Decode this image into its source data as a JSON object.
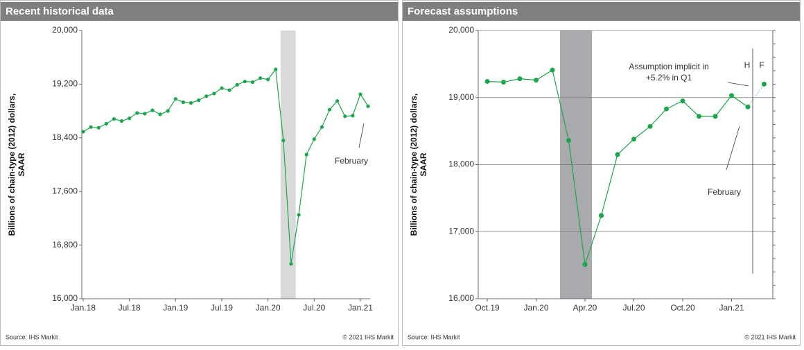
{
  "chart_data": [
    {
      "type": "line",
      "title": "Recent historical data",
      "ylabel": [
        "Billions of chain-type (2012) dollars,",
        "SAAR"
      ],
      "source": "Source: IHS Markit",
      "copyright": "© 2021 IHS Markit",
      "categories": [
        "Jan.18",
        null,
        null,
        null,
        null,
        null,
        "Jul.18",
        null,
        null,
        null,
        null,
        null,
        "Jan.19",
        null,
        null,
        null,
        null,
        null,
        "Jul.19",
        null,
        null,
        null,
        null,
        null,
        "Jan.20",
        null,
        null,
        null,
        null,
        null,
        "Jul.20",
        null,
        null,
        null,
        null,
        null,
        "Jan.21",
        null
      ],
      "values": [
        18490,
        18560,
        18550,
        18610,
        18680,
        18650,
        18690,
        18770,
        18760,
        18810,
        18750,
        18800,
        18980,
        18930,
        18920,
        18960,
        19020,
        19060,
        19140,
        19110,
        19190,
        19240,
        19230,
        19290,
        19270,
        19420,
        18360,
        16520,
        17250,
        18150,
        18380,
        18560,
        18820,
        18950,
        18720,
        18730,
        19050,
        18870
      ],
      "color": "#1aa64a",
      "ylim": [
        16000,
        20000
      ],
      "yticks": [
        {
          "value": 16000,
          "label": "16,000"
        },
        {
          "value": 16800,
          "label": "16,800"
        },
        {
          "value": 17600,
          "label": "17,600"
        },
        {
          "value": 18400,
          "label": "18,400"
        },
        {
          "value": 19200,
          "label": "19,200"
        },
        {
          "value": 20000,
          "label": "20,000"
        }
      ],
      "grid": false,
      "annotations": [
        "February"
      ]
    },
    {
      "type": "line",
      "title": "Forecast assumptions",
      "ylabel": [
        "Billions of chain-type (2012) dollars,",
        "SAAR"
      ],
      "source": "Source: IHS Markit",
      "copyright": "© 2021 IHS Markit",
      "categories": [
        "Oct.19",
        null,
        null,
        "Jan.20",
        null,
        null,
        "Apr.20",
        null,
        null,
        "Jul.20",
        null,
        null,
        "Oct.20",
        null,
        null,
        "Jan.21",
        null,
        null
      ],
      "values": [
        19240,
        19230,
        19280,
        19260,
        19410,
        18360,
        16510,
        17240,
        18150,
        18380,
        18570,
        18830,
        18950,
        18720,
        18720,
        19030,
        18860,
        19200
      ],
      "color": "#1aa64a",
      "ylim": [
        16000,
        20000
      ],
      "yticks": [
        {
          "value": 16000,
          "label": "16,000"
        },
        {
          "value": 17000,
          "label": "17,000"
        },
        {
          "value": 18000,
          "label": "18,000"
        },
        {
          "value": 19000,
          "label": "19,000"
        },
        {
          "value": 20000,
          "label": "20,000"
        }
      ],
      "grid": true,
      "annotations": [
        "Assumption implicit in",
        "+5.2% in Q1",
        "February",
        "H",
        "F"
      ]
    }
  ]
}
